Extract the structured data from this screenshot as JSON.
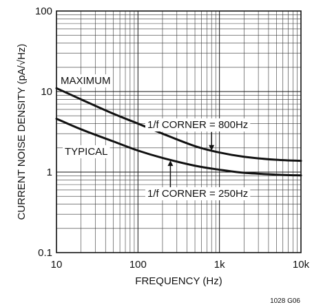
{
  "chart_data": {
    "type": "line",
    "xscale": "log",
    "yscale": "log",
    "xlim": [
      10,
      10000
    ],
    "ylim": [
      0.1,
      100
    ],
    "grid": true,
    "xlabel": "FREQUENCY (Hz)",
    "ylabel": "CURRENT NOISE DENSITY (pA/√Hz)",
    "x_ticks": [
      {
        "value": 10,
        "label": "10"
      },
      {
        "value": 100,
        "label": "100"
      },
      {
        "value": 1000,
        "label": "1k"
      },
      {
        "value": 10000,
        "label": "10k"
      }
    ],
    "y_ticks": [
      {
        "value": 0.1,
        "label": "0.1"
      },
      {
        "value": 1,
        "label": "1"
      },
      {
        "value": 10,
        "label": "10"
      },
      {
        "value": 100,
        "label": "100"
      }
    ],
    "series": [
      {
        "name": "MAXIMUM",
        "x": [
          10,
          20,
          50,
          100,
          200,
          500,
          1000,
          2000,
          5000,
          10000
        ],
        "y": [
          11.0,
          8.0,
          5.3,
          4.0,
          3.0,
          2.1,
          1.75,
          1.55,
          1.42,
          1.38
        ]
      },
      {
        "name": "TYPICAL",
        "x": [
          10,
          20,
          50,
          100,
          200,
          500,
          1000,
          2000,
          5000,
          10000
        ],
        "y": [
          4.6,
          3.4,
          2.4,
          1.85,
          1.5,
          1.2,
          1.07,
          0.98,
          0.93,
          0.91
        ]
      }
    ],
    "annotations": [
      {
        "text": "1/f CORNER = 800Hz",
        "arrow_x": 800,
        "arrow_y": 1.78
      },
      {
        "text": "1/f CORNER = 250Hz",
        "arrow_x": 250,
        "arrow_y": 1.45
      }
    ],
    "figure_id": "1028 G06"
  }
}
